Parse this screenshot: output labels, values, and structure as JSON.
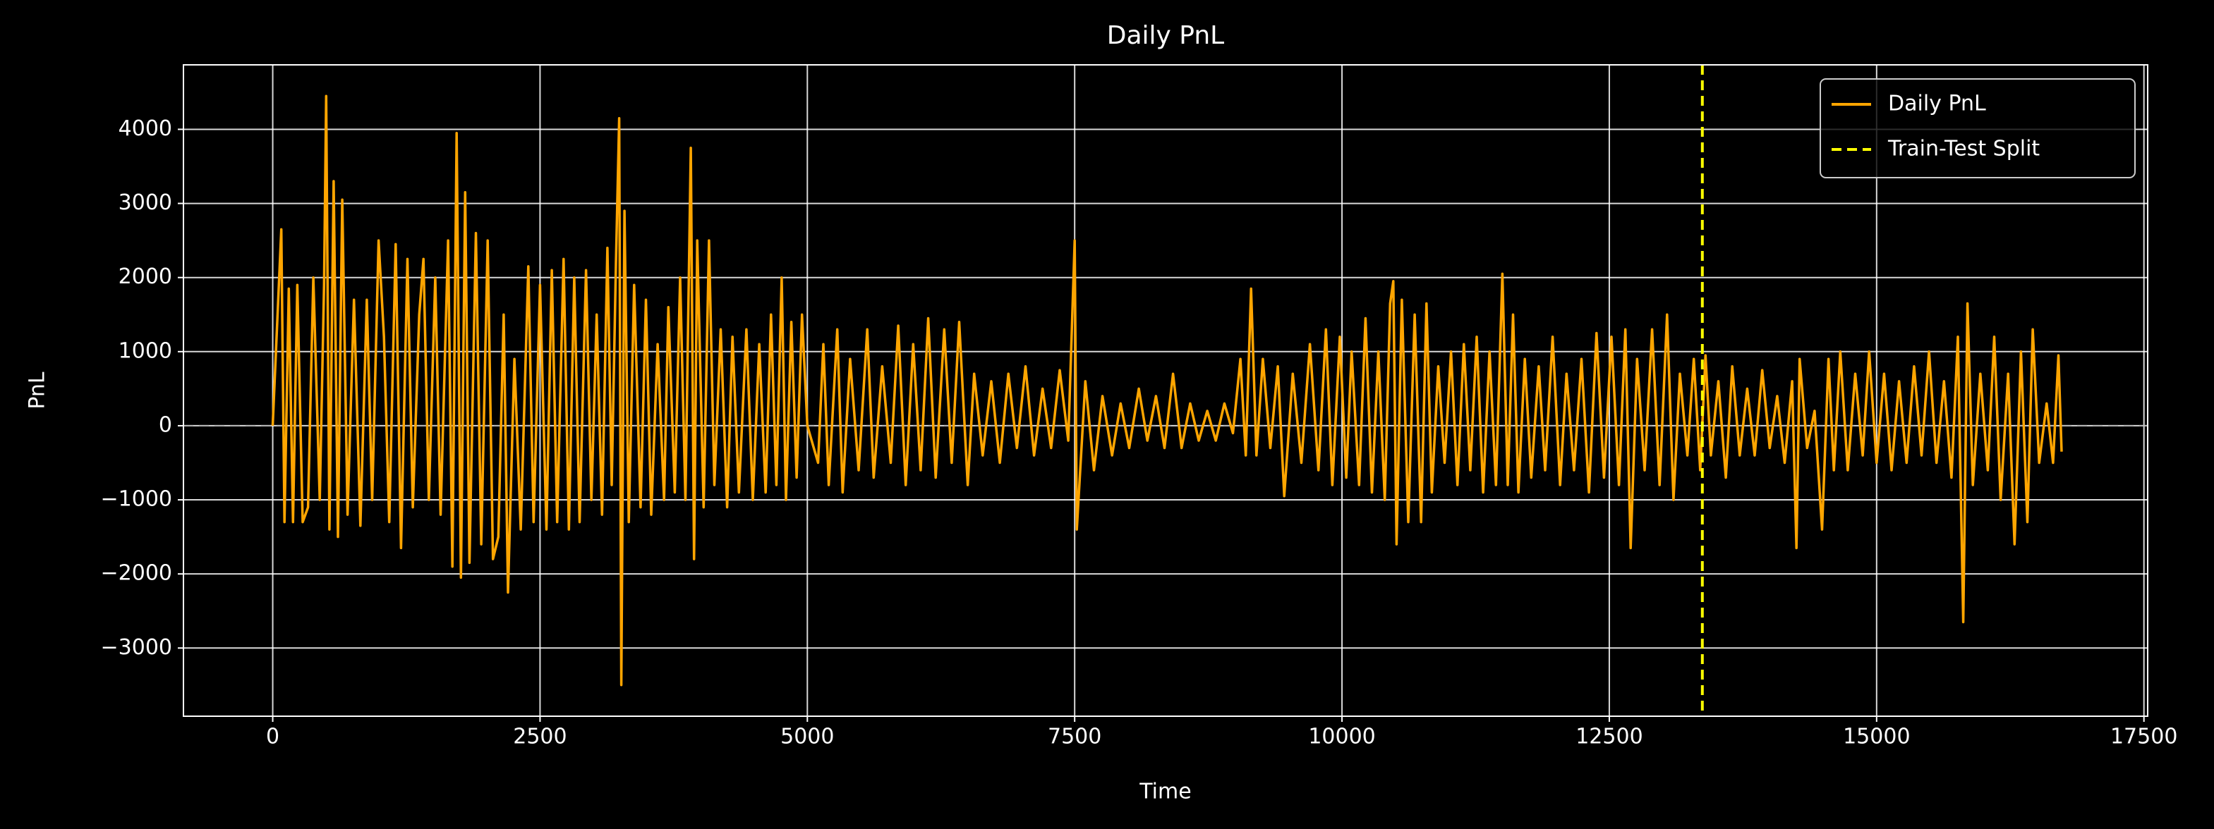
{
  "chart_data": {
    "type": "line",
    "title": "Daily PnL",
    "xlabel": "Time",
    "ylabel": "PnL",
    "xlim": [
      -835,
      17535
    ],
    "ylim": [
      -3920,
      4870
    ],
    "xticks": [
      0,
      2500,
      5000,
      7500,
      10000,
      12500,
      15000,
      17500
    ],
    "yticks": [
      {
        "value": -3000,
        "label": "−3000"
      },
      {
        "value": -2000,
        "label": "−2000"
      },
      {
        "value": -1000,
        "label": "−1000"
      },
      0,
      1000,
      2000,
      3000,
      4000
    ],
    "grid": true,
    "legend": "upper right",
    "x": [
      0,
      80,
      110,
      150,
      190,
      230,
      280,
      330,
      380,
      440,
      480,
      500,
      530,
      570,
      610,
      650,
      700,
      760,
      820,
      880,
      930,
      990,
      1040,
      1090,
      1150,
      1200,
      1260,
      1310,
      1370,
      1410,
      1460,
      1520,
      1570,
      1640,
      1680,
      1720,
      1760,
      1800,
      1840,
      1900,
      1950,
      2010,
      2060,
      2110,
      2160,
      2200,
      2260,
      2320,
      2390,
      2440,
      2500,
      2560,
      2610,
      2660,
      2720,
      2770,
      2820,
      2870,
      2930,
      2980,
      3030,
      3080,
      3130,
      3170,
      3210,
      3240,
      3260,
      3290,
      3330,
      3380,
      3440,
      3490,
      3540,
      3600,
      3660,
      3700,
      3760,
      3810,
      3860,
      3910,
      3940,
      3970,
      4030,
      4080,
      4130,
      4190,
      4250,
      4300,
      4360,
      4430,
      4490,
      4550,
      4610,
      4660,
      4710,
      4760,
      4800,
      4850,
      4900,
      4950,
      5000,
      5100,
      5150,
      5200,
      5280,
      5330,
      5400,
      5480,
      5560,
      5620,
      5700,
      5780,
      5850,
      5920,
      5990,
      6060,
      6130,
      6200,
      6280,
      6350,
      6420,
      6500,
      6560,
      6640,
      6720,
      6800,
      6880,
      6960,
      7040,
      7120,
      7200,
      7280,
      7360,
      7440,
      7500,
      7520,
      7600,
      7680,
      7760,
      7850,
      7930,
      8010,
      8100,
      8180,
      8260,
      8340,
      8420,
      8500,
      8580,
      8660,
      8740,
      8820,
      8900,
      8980,
      9050,
      9100,
      9150,
      9200,
      9260,
      9330,
      9400,
      9460,
      9540,
      9620,
      9700,
      9780,
      9850,
      9910,
      9980,
      10040,
      10090,
      10160,
      10220,
      10280,
      10340,
      10400,
      10450,
      10480,
      10510,
      10560,
      10620,
      10680,
      10740,
      10790,
      10840,
      10900,
      10960,
      11020,
      11080,
      11140,
      11200,
      11260,
      11320,
      11380,
      11440,
      11500,
      11550,
      11600,
      11650,
      11710,
      11770,
      11840,
      11900,
      11970,
      12040,
      12100,
      12170,
      12240,
      12310,
      12380,
      12450,
      12520,
      12590,
      12650,
      12700,
      12760,
      12830,
      12900,
      12970,
      13040,
      13100,
      13160,
      13230,
      13290,
      13350,
      13400,
      13450,
      13520,
      13590,
      13650,
      13720,
      13790,
      13860,
      13930,
      14000,
      14070,
      14140,
      14210,
      14250,
      14280,
      14350,
      14420,
      14490,
      14550,
      14600,
      14660,
      14730,
      14800,
      14870,
      14930,
      15000,
      15070,
      15140,
      15210,
      15280,
      15350,
      15420,
      15490,
      15560,
      15630,
      15700,
      15760,
      15810,
      15850,
      15900,
      15970,
      16040,
      16100,
      16160,
      16230,
      16290,
      16350,
      16410,
      16460,
      16520,
      16590,
      16650,
      16700,
      16730
    ],
    "series": [
      {
        "name": "Daily PnL",
        "color": "#ffa500",
        "values": [
          0,
          2650,
          -1300,
          1850,
          -1300,
          1900,
          -1300,
          -1100,
          2000,
          -1000,
          1900,
          4450,
          -1400,
          3300,
          -1500,
          3050,
          -1200,
          1700,
          -1350,
          1700,
          -1000,
          2500,
          1200,
          -1300,
          2450,
          -1650,
          2250,
          -1100,
          1500,
          2250,
          -1000,
          2000,
          -1200,
          2500,
          -1900,
          3950,
          -2050,
          3150,
          -1850,
          2600,
          -1600,
          2500,
          -1800,
          -1500,
          1500,
          -2250,
          900,
          -1400,
          2150,
          -1300,
          1900,
          -1400,
          2100,
          -1300,
          2250,
          -1400,
          2000,
          -1300,
          2100,
          -1000,
          1500,
          -1200,
          2400,
          -800,
          2200,
          4150,
          -3500,
          2900,
          -1300,
          1900,
          -1100,
          1700,
          -1200,
          1100,
          -1000,
          1600,
          -900,
          2000,
          -1000,
          3750,
          -1800,
          2500,
          -1100,
          2500,
          -800,
          1300,
          -1100,
          1200,
          -900,
          1300,
          -1000,
          1100,
          -900,
          1500,
          -800,
          2000,
          -1000,
          1400,
          -700,
          1500,
          0,
          -500,
          1100,
          -800,
          1300,
          -900,
          900,
          -600,
          1300,
          -700,
          800,
          -500,
          1350,
          -800,
          1100,
          -600,
          1450,
          -700,
          1300,
          -500,
          1400,
          -800,
          700,
          -400,
          600,
          -500,
          700,
          -300,
          800,
          -400,
          500,
          -300,
          750,
          -200,
          2500,
          -1400,
          600,
          -600,
          400,
          -400,
          300,
          -300,
          500,
          -200,
          400,
          -300,
          700,
          -300,
          300,
          -200,
          200,
          -200,
          300,
          -100,
          900,
          -400,
          1850,
          -400,
          900,
          -300,
          800,
          -950,
          700,
          -500,
          1100,
          -600,
          1300,
          -800,
          1200,
          -700,
          1000,
          -800,
          1450,
          -900,
          1000,
          -1000,
          1650,
          1950,
          -1600,
          1700,
          -1300,
          1500,
          -1300,
          1650,
          -900,
          800,
          -500,
          1000,
          -800,
          1100,
          -600,
          1200,
          -900,
          1000,
          -800,
          2050,
          -800,
          1500,
          -900,
          900,
          -700,
          800,
          -600,
          1200,
          -800,
          700,
          -600,
          900,
          -900,
          1250,
          -700,
          1200,
          -800,
          1300,
          -1650,
          900,
          -600,
          1300,
          -800,
          1500,
          -1000,
          700,
          -400,
          900,
          -600,
          950,
          -400,
          600,
          -700,
          800,
          -400,
          500,
          -400,
          750,
          -300,
          400,
          -500,
          600,
          -1650,
          900,
          -300,
          200,
          -1400,
          900,
          -600,
          1000,
          -600,
          700,
          -400,
          1000,
          -500,
          700,
          -600,
          600,
          -500,
          800,
          -400,
          1000,
          -500,
          600,
          -700,
          1200,
          -2650,
          1650,
          -800,
          700,
          -600,
          1200,
          -1000,
          700,
          -1600,
          1000,
          -1300,
          1300,
          -500,
          300,
          -500,
          950,
          -350
        ]
      }
    ],
    "zero_line": {
      "y": 0,
      "color": "#aaaaaa"
    },
    "split": {
      "name": "Train-Test Split",
      "x": 13370,
      "color": "#ffff00"
    }
  }
}
